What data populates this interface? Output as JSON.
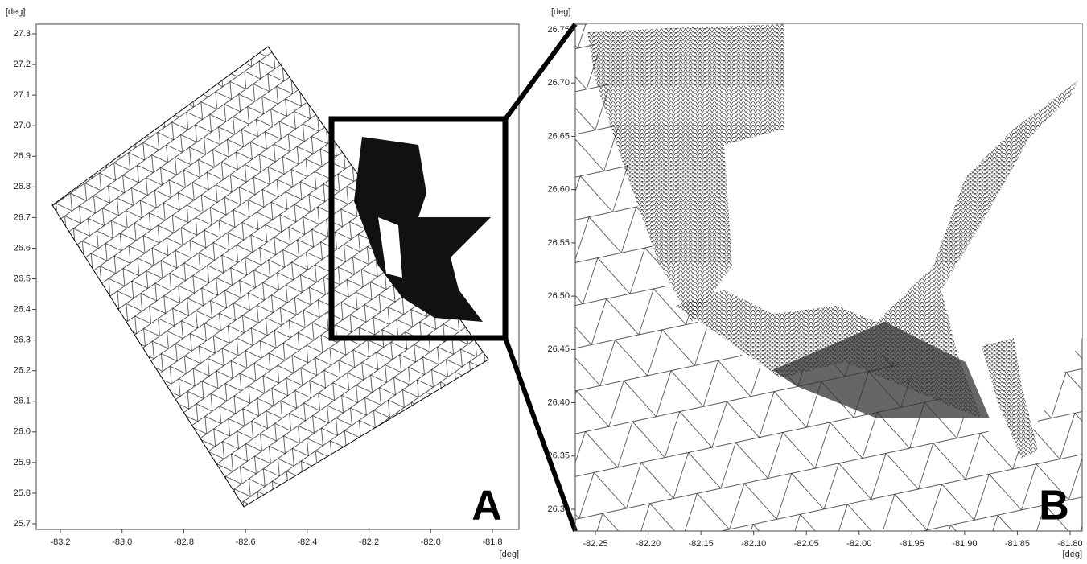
{
  "panels": [
    {
      "label": "A",
      "y_unit": "[deg]",
      "x_unit": "[deg]",
      "xticks": [
        -83.2,
        {
          "value": -83,
          "label": "-83.0"
        },
        -82.8,
        -82.6,
        -82.4,
        -82.2,
        {
          "value": -82,
          "label": "-82.0"
        },
        -81.8
      ],
      "yticks": [
        25.7,
        25.8,
        25.9,
        {
          "value": 26,
          "label": "26.0"
        },
        26.1,
        26.2,
        26.3,
        26.4,
        26.5,
        26.6,
        26.7,
        26.8,
        26.9,
        {
          "value": 27,
          "label": "27.0"
        },
        27.1,
        27.2,
        27.3
      ]
    },
    {
      "label": "B",
      "y_unit": "[deg]",
      "x_unit": "[deg]",
      "xticks": [
        -82.25,
        {
          "value": -82.2,
          "label": "-82.20"
        },
        -82.15,
        {
          "value": -82.1,
          "label": "-82.10"
        },
        -82.05,
        {
          "value": -82,
          "label": "-82.00"
        },
        -81.95,
        {
          "value": -81.9,
          "label": "-81.90"
        },
        -81.85,
        {
          "value": -81.8,
          "label": "-81.80"
        }
      ],
      "yticks": [
        {
          "value": 26.3,
          "label": "26.30"
        },
        26.35,
        {
          "value": 26.4,
          "label": "26.40"
        },
        26.45,
        {
          "value": 26.5,
          "label": "26.50"
        },
        26.55,
        {
          "value": 26.6,
          "label": "26.60"
        },
        26.65,
        {
          "value": 26.7,
          "label": "26.70"
        },
        26.75
      ]
    }
  ]
}
